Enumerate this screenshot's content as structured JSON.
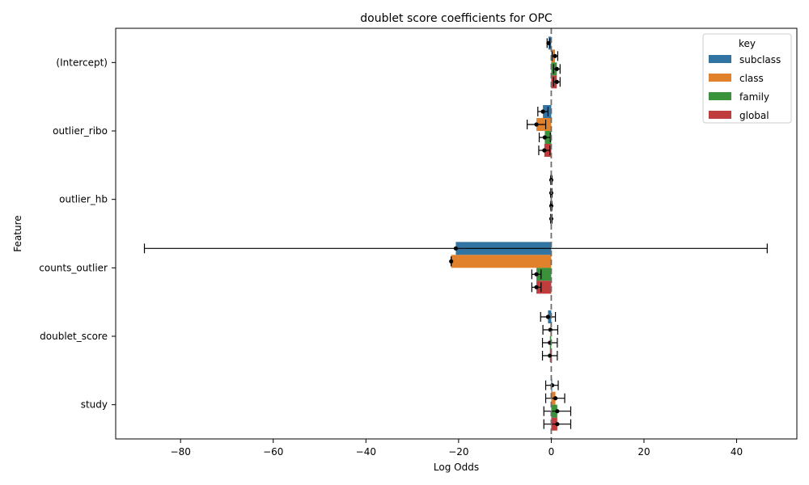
{
  "chart_data": {
    "type": "bar",
    "orientation": "horizontal",
    "title": "doublet score coefficients for OPC",
    "xlabel": "Log Odds",
    "ylabel": "Feature",
    "xlim": [
      -94,
      53
    ],
    "x_ticks": [
      -80,
      -60,
      -40,
      -20,
      0,
      20,
      40
    ],
    "x_tick_labels": [
      "−80",
      "−60",
      "−40",
      "−20",
      "0",
      "20",
      "40"
    ],
    "reference_line_x": 0,
    "categories": [
      "(Intercept)",
      "outlier_ribo",
      "outlier_hb",
      "counts_outlier",
      "doublet_score",
      "study"
    ],
    "legend": {
      "title": "key",
      "placement": "top-right"
    },
    "series": [
      {
        "name": "subclass",
        "color": "#3274a1",
        "values": [
          -0.6,
          -1.8,
          0.0,
          -20.6,
          -0.7,
          0.2
        ],
        "err_low": [
          -0.9,
          -2.9,
          -0.15,
          -87.8,
          -2.3,
          -1.2
        ],
        "err_high": [
          -0.3,
          -0.7,
          0.15,
          46.6,
          0.9,
          1.5
        ]
      },
      {
        "name": "class",
        "color": "#e1812c",
        "values": [
          0.8,
          -3.2,
          0.0,
          -21.6,
          -0.2,
          0.9
        ],
        "err_low": [
          0.2,
          -5.2,
          -0.15,
          -21.6,
          -1.8,
          -1.2
        ],
        "err_high": [
          1.4,
          -1.2,
          0.15,
          -21.6,
          1.4,
          2.9
        ]
      },
      {
        "name": "family",
        "color": "#3a923a",
        "values": [
          1.2,
          -1.4,
          0.0,
          -3.2,
          -0.3,
          1.3
        ],
        "err_low": [
          0.5,
          -2.6,
          -0.15,
          -4.2,
          -1.9,
          -1.6
        ],
        "err_high": [
          1.9,
          -0.2,
          0.15,
          -2.2,
          1.3,
          4.2
        ]
      },
      {
        "name": "global",
        "color": "#c03d3e",
        "values": [
          1.2,
          -1.5,
          0.0,
          -3.2,
          -0.3,
          1.3
        ],
        "err_low": [
          0.5,
          -2.7,
          -0.15,
          -4.2,
          -1.9,
          -1.6
        ],
        "err_high": [
          1.9,
          -0.3,
          0.15,
          -2.2,
          1.3,
          4.2
        ]
      }
    ]
  }
}
